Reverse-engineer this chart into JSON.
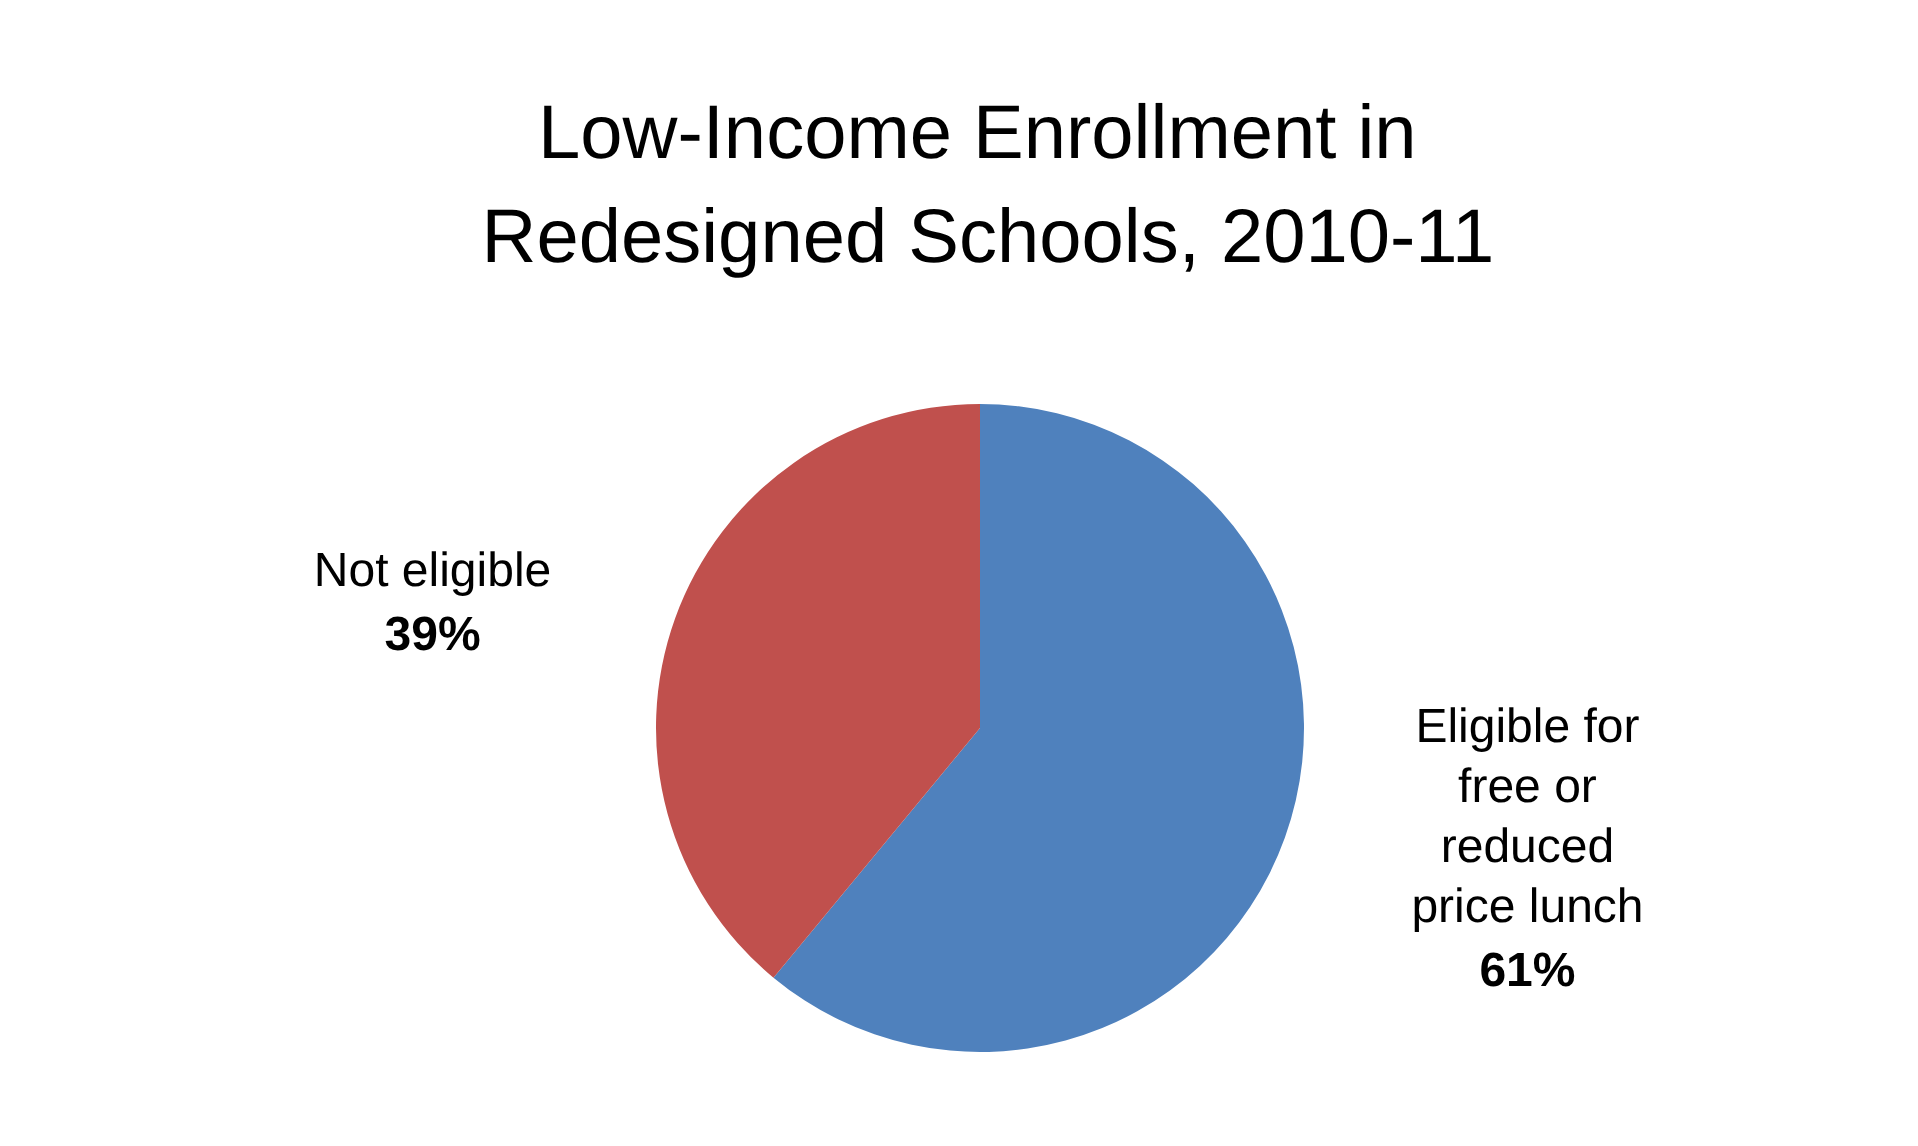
{
  "chart_data": {
    "type": "pie",
    "title": "Low-Income Enrollment in Redesigned Schools, 2010-11",
    "categories": [
      "Eligible for free or reduced price lunch",
      "Not eligible"
    ],
    "values": [
      61,
      39
    ],
    "colors": [
      "#4f81bd",
      "#c0504d"
    ],
    "value_labels": [
      "61%",
      "39%"
    ],
    "legend": false
  }
}
